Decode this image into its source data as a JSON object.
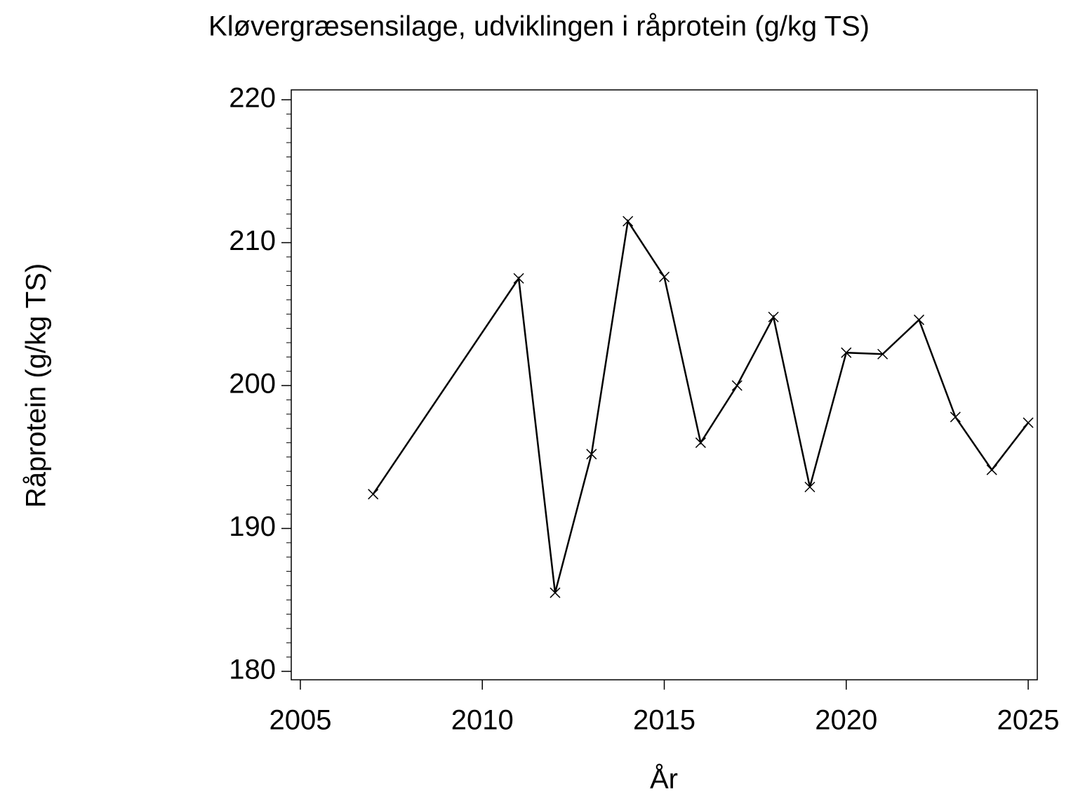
{
  "chart_data": {
    "type": "line",
    "title": "Kløvergræsensilage,  udviklingen  i  råprotein  (g/kg  TS)",
    "x_label": "År",
    "y_label": "Råprotein  (g/kg  TS)",
    "x": [
      2007,
      2011,
      2012,
      2013,
      2014,
      2015,
      2016,
      2017,
      2018,
      2019,
      2020,
      2021,
      2022,
      2023,
      2024,
      2025
    ],
    "series": [
      {
        "color": "#000000",
        "marker": "x",
        "values": [
          192.4,
          207.5,
          185.5,
          195.2,
          211.5,
          207.6,
          196.0,
          200.0,
          204.8,
          192.9,
          202.3,
          202.2,
          204.6,
          197.8,
          194.1,
          197.4
        ]
      }
    ],
    "xlim": [
      2004.75,
      2025.25
    ],
    "ylim": [
      179.41,
      220.69
    ],
    "xticks": [
      2005,
      2010,
      2015,
      2020,
      2025
    ],
    "yticks": [
      180,
      190,
      200,
      210,
      220
    ],
    "y_minor_ticks": [
      181,
      182,
      183,
      184,
      185,
      186,
      187,
      188,
      189,
      191,
      192,
      193,
      194,
      195,
      196,
      197,
      198,
      199,
      201,
      202,
      203,
      204,
      205,
      206,
      207,
      208,
      209,
      211,
      212,
      213,
      214,
      215,
      216,
      217,
      218,
      219
    ]
  }
}
